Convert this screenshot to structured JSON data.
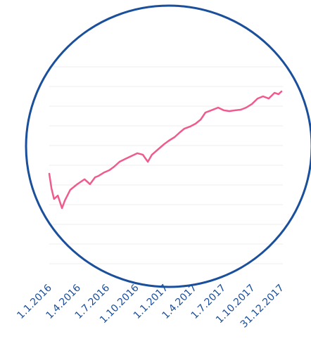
{
  "chart_data": {
    "type": "line",
    "grid": true,
    "xlim": [
      "1.1.2016",
      "31.12.2017"
    ],
    "xticks": [
      "1.1.2016",
      "1.4.2016",
      "1.7.2016",
      "1.10.2016",
      "1.1.2017",
      "1.4.2017",
      "1.7.2017",
      "1.10.2017",
      "31.12.2017"
    ],
    "ylim": [
      0,
      100
    ],
    "yticks": [
      0,
      10,
      20,
      30,
      40,
      50,
      60,
      70,
      80,
      90,
      100
    ],
    "x": [
      "1.1.2016",
      "8.1.2016",
      "16.1.2016",
      "28.1.2016",
      "10.2.2016",
      "19.2.2016",
      "7.3.2016",
      "29.3.2016",
      "21.4.2016",
      "8.5.2016",
      "24.5.2016",
      "4.6.2016",
      "22.6.2016",
      "8.7.2016",
      "23.7.2016",
      "9.8.2016",
      "27.8.2016",
      "14.9.2016",
      "4.10.2016",
      "21.10.2016",
      "6.11.2016",
      "19.11.2016",
      "9.12.2016",
      "27.12.2016",
      "11.1.2017",
      "29.1.2017",
      "15.2.2017",
      "1.3.2017",
      "18.3.2017",
      "5.4.2017",
      "21.4.2017",
      "6.5.2017",
      "24.5.2017",
      "15.6.2017",
      "3.7.2017",
      "20.7.2017",
      "7.8.2017",
      "25.8.2017",
      "11.9.2017",
      "29.9.2017",
      "17.10.2017",
      "3.11.2017",
      "21.11.2017",
      "9.12.2017",
      "22.12.2017",
      "31.12.2017"
    ],
    "color": "#ee5b8f",
    "values": [
      45.7,
      38.2,
      32.9,
      34.6,
      28.2,
      32.1,
      37.5,
      40.4,
      42.9,
      40.4,
      43.9,
      44.6,
      46.4,
      47.5,
      49.3,
      51.8,
      53.2,
      54.6,
      56.1,
      55.4,
      51.8,
      55.4,
      58.2,
      60.7,
      62.5,
      64.3,
      66.8,
      68.6,
      69.6,
      71.1,
      73.2,
      76.8,
      77.9,
      79.3,
      77.9,
      77.5,
      77.9,
      78.2,
      79.3,
      81.1,
      83.9,
      85.0,
      83.9,
      86.8,
      86.1,
      87.5
    ]
  }
}
